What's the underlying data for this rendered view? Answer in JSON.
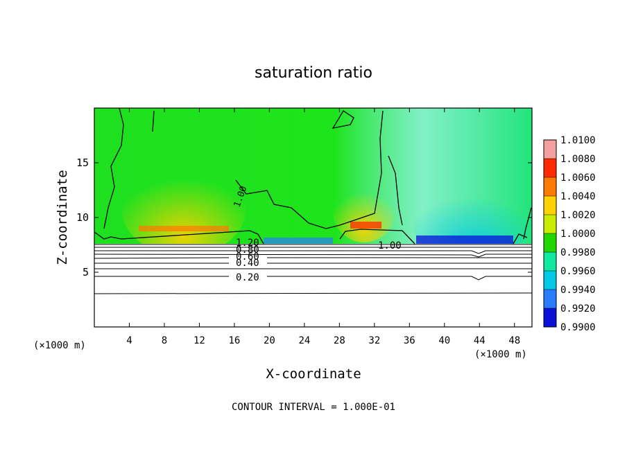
{
  "chart_data": {
    "type": "heatmap",
    "title": "saturation ratio",
    "xlabel": "X-coordinate",
    "ylabel": "Z-coordinate",
    "x_unit_left": "(×1000 m)",
    "x_unit_right": "(×1000 m)",
    "xlim": [
      0,
      50
    ],
    "ylim": [
      0,
      20
    ],
    "x_ticks": [
      4,
      8,
      12,
      16,
      20,
      24,
      28,
      32,
      36,
      40,
      44,
      48
    ],
    "y_ticks": [
      5,
      10,
      15
    ],
    "colorbar": {
      "labels": [
        "1.0100",
        "1.0080",
        "1.0060",
        "1.0040",
        "1.0020",
        "1.0000",
        "0.9980",
        "0.9960",
        "0.9940",
        "0.9920",
        "0.9900"
      ],
      "colors": [
        "#f4a0a0",
        "#ff2a00",
        "#ff7a00",
        "#ffd200",
        "#c9ec00",
        "#22d600",
        "#11e8a0",
        "#00c8e6",
        "#2a7cff",
        "#0a10d8",
        "#5a0da8"
      ]
    },
    "contour_labels": [
      "1.20",
      "0.80",
      "0.60",
      "0.40",
      "0.20",
      "1.00",
      "1.00"
    ],
    "footer": "CONTOUR INTERVAL = 1.000E-01"
  }
}
